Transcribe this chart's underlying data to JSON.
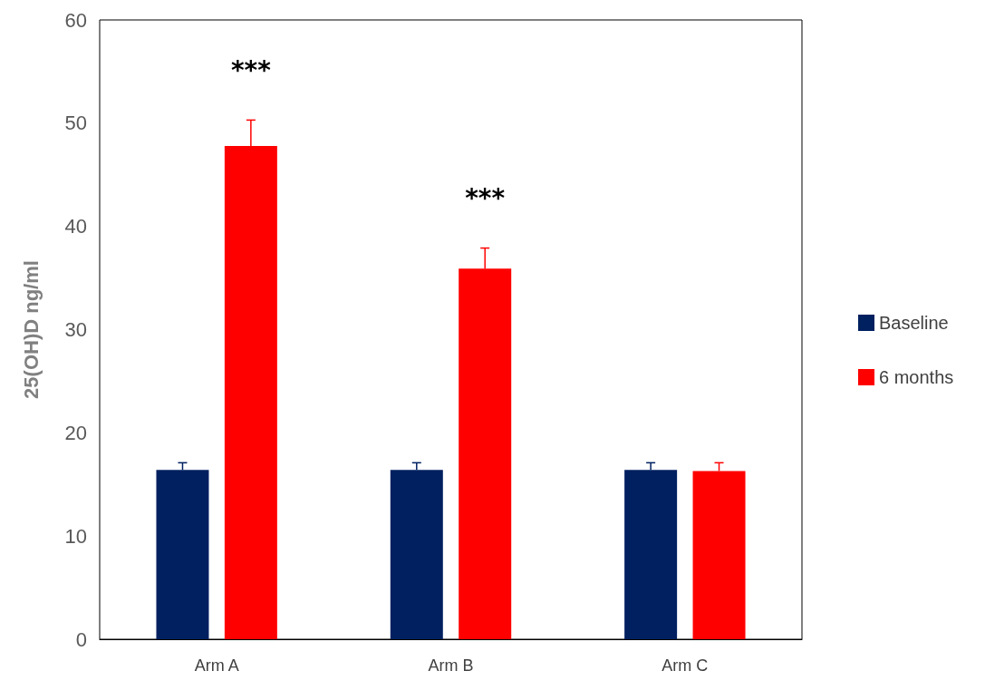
{
  "chart_data": {
    "type": "bar",
    "ylabel": "25(OH)D ng/ml",
    "categories": [
      "Arm A",
      "Arm B",
      "Arm C"
    ],
    "series": [
      {
        "name": "Baseline",
        "color": "#002060",
        "values": [
          16.4,
          16.4,
          16.4
        ],
        "errors": [
          [
            16.4,
            17.1
          ],
          [
            16.4,
            17.1
          ],
          [
            16.4,
            17.1
          ]
        ]
      },
      {
        "name": "6 months",
        "color": "#ff0000",
        "values": [
          47.8,
          35.9,
          16.3
        ],
        "errors": [
          [
            47.8,
            50.3
          ],
          [
            35.9,
            37.9
          ],
          [
            16.3,
            17.1
          ]
        ]
      }
    ],
    "ylim": [
      0,
      60
    ],
    "yticks": [
      0,
      10,
      20,
      30,
      40,
      50,
      60
    ],
    "grid": false,
    "legend": "right",
    "annotations": [
      "***",
      "***"
    ]
  }
}
